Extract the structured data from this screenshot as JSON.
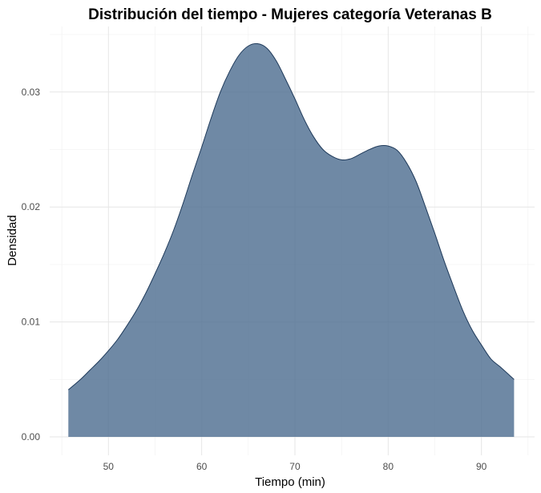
{
  "chart_data": {
    "type": "area",
    "title": "Distribución del tiempo - Mujeres categoría Veteranas B",
    "xlabel": "Tiempo (min)",
    "ylabel": "Densidad",
    "xlim": [
      43.7,
      95.7
    ],
    "ylim": [
      -0.0016,
      0.0357
    ],
    "x_ticks": [
      50,
      60,
      70,
      80,
      90
    ],
    "x_tick_labels": [
      "50",
      "60",
      "70",
      "80",
      "90"
    ],
    "y_ticks": [
      0.0,
      0.01,
      0.02,
      0.03
    ],
    "y_tick_labels": [
      "0.00",
      "0.01",
      "0.02",
      "0.03"
    ],
    "grid": true,
    "fill_color": "#4f6f91",
    "line_color": "#1f3a5a",
    "series": [
      {
        "x": [
          45.7,
          47.0,
          48.0,
          49.0,
          50.0,
          51.0,
          52.0,
          53.0,
          54.0,
          55.0,
          56.0,
          57.0,
          58.0,
          59.0,
          60.0,
          61.0,
          62.0,
          63.0,
          64.0,
          65.0,
          66.0,
          67.0,
          68.0,
          69.0,
          70.0,
          71.0,
          72.0,
          73.0,
          74.0,
          75.0,
          76.0,
          77.0,
          78.0,
          79.0,
          80.0,
          81.0,
          82.0,
          83.0,
          84.0,
          85.0,
          86.0,
          87.0,
          88.0,
          89.0,
          90.0,
          91.0,
          92.0,
          93.5
        ],
        "y": [
          0.0041,
          0.005,
          0.0058,
          0.0066,
          0.0075,
          0.0085,
          0.0097,
          0.011,
          0.0125,
          0.0142,
          0.016,
          0.018,
          0.0203,
          0.0228,
          0.0252,
          0.0277,
          0.03,
          0.0318,
          0.0332,
          0.034,
          0.0342,
          0.0338,
          0.0327,
          0.0311,
          0.0294,
          0.0276,
          0.0261,
          0.025,
          0.0244,
          0.0241,
          0.0242,
          0.0246,
          0.025,
          0.0253,
          0.0253,
          0.0249,
          0.0238,
          0.0222,
          0.02,
          0.0177,
          0.0153,
          0.0131,
          0.011,
          0.0093,
          0.008,
          0.0068,
          0.0061,
          0.005
        ]
      }
    ]
  }
}
